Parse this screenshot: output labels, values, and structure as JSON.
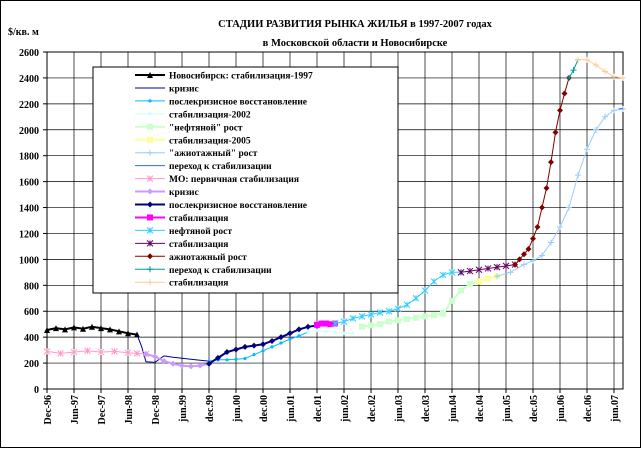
{
  "chart_data": {
    "type": "line",
    "title_line1": "СТАДИИ РАЗВИТИЯ РЫНКА ЖИЛЬЯ в 1997-2007 годах",
    "title_line2": "в Московской области и Новосибирске",
    "ylabel": "$/кв. м",
    "ylim": [
      0,
      2600
    ],
    "yticks": [
      "0",
      "200",
      "400",
      "600",
      "800",
      "1000",
      "1200",
      "1400",
      "1600",
      "1800",
      "2000",
      "2200",
      "2400",
      "2600"
    ],
    "xlim": [
      0,
      128
    ],
    "xticks": [
      {
        "i": 0,
        "label": "Dec-96"
      },
      {
        "i": 6,
        "label": "Jun-97"
      },
      {
        "i": 12,
        "label": "Dec-97"
      },
      {
        "i": 18,
        "label": "Jun-98"
      },
      {
        "i": 24,
        "label": "Dec-98"
      },
      {
        "i": 30,
        "label": "jun.99"
      },
      {
        "i": 36,
        "label": "dec.99"
      },
      {
        "i": 42,
        "label": "jun.00"
      },
      {
        "i": 48,
        "label": "dec.00"
      },
      {
        "i": 54,
        "label": "jun.01"
      },
      {
        "i": 60,
        "label": "dec.01"
      },
      {
        "i": 66,
        "label": "jun.02"
      },
      {
        "i": 72,
        "label": "dec.02"
      },
      {
        "i": 78,
        "label": "jun.03"
      },
      {
        "i": 84,
        "label": "dec.03"
      },
      {
        "i": 90,
        "label": "jun.04"
      },
      {
        "i": 96,
        "label": "dec.04"
      },
      {
        "i": 102,
        "label": "jun.05"
      },
      {
        "i": 108,
        "label": "dec.05"
      },
      {
        "i": 114,
        "label": "jun.06"
      },
      {
        "i": 120,
        "label": "dec.06"
      },
      {
        "i": 126,
        "label": "jun.07"
      }
    ],
    "grid": true,
    "legend_placement": "upper-left inside plot",
    "series": [
      {
        "name": "Новосибирск: стабилизация-1997",
        "color": "#000000",
        "marker": "triangle",
        "width": 2,
        "points": [
          [
            0,
            455
          ],
          [
            2,
            470
          ],
          [
            4,
            460
          ],
          [
            6,
            475
          ],
          [
            8,
            465
          ],
          [
            10,
            480
          ],
          [
            12,
            470
          ],
          [
            14,
            460
          ],
          [
            16,
            445
          ],
          [
            18,
            430
          ],
          [
            20,
            420
          ]
        ]
      },
      {
        "name": "кризис",
        "color": "#000099",
        "marker": "none",
        "width": 1,
        "points": [
          [
            20,
            420
          ],
          [
            21,
            330
          ],
          [
            22,
            210
          ],
          [
            24,
            205
          ],
          [
            26,
            255
          ],
          [
            28,
            245
          ],
          [
            30,
            238
          ],
          [
            32,
            230
          ],
          [
            34,
            222
          ],
          [
            36,
            215
          ]
        ]
      },
      {
        "name": "послекризисное восстановление",
        "color": "#00BBFF",
        "marker": "dot",
        "width": 1,
        "points": [
          [
            36,
            215
          ],
          [
            38,
            225
          ],
          [
            40,
            225
          ],
          [
            42,
            230
          ],
          [
            44,
            235
          ],
          [
            46,
            265
          ],
          [
            48,
            295
          ],
          [
            50,
            325
          ],
          [
            52,
            355
          ],
          [
            54,
            385
          ],
          [
            56,
            410
          ],
          [
            58,
            440
          ]
        ]
      },
      {
        "name": "стабилизация-2002",
        "color": "#CCFFFF",
        "marker": "dot",
        "width": 1,
        "points": [
          [
            58,
            440
          ],
          [
            60,
            450
          ],
          [
            62,
            445
          ],
          [
            64,
            440
          ],
          [
            66,
            430
          ],
          [
            68,
            430
          ]
        ]
      },
      {
        "name": "\"нефтяной\" рост",
        "color": "#CCFFCC",
        "marker": "square",
        "width": 2,
        "points": [
          [
            70,
            480
          ],
          [
            72,
            490
          ],
          [
            74,
            500
          ],
          [
            76,
            520
          ],
          [
            78,
            530
          ],
          [
            80,
            540
          ],
          [
            82,
            550
          ],
          [
            84,
            560
          ],
          [
            86,
            570
          ],
          [
            88,
            580
          ],
          [
            90,
            680
          ],
          [
            92,
            760
          ],
          [
            94,
            810
          ],
          [
            96,
            830
          ]
        ]
      },
      {
        "name": "стабилизация-2005",
        "color": "#FFFF99",
        "marker": "square",
        "width": 2,
        "points": [
          [
            96,
            830
          ],
          [
            98,
            850
          ],
          [
            100,
            870
          ]
        ]
      },
      {
        "name": "\"ажиотажный\" рост",
        "color": "#99CCFF",
        "marker": "plus",
        "width": 1,
        "points": [
          [
            100,
            870
          ],
          [
            103,
            900
          ],
          [
            106,
            960
          ],
          [
            108,
            990
          ],
          [
            110,
            1030
          ],
          [
            112,
            1130
          ],
          [
            114,
            1250
          ],
          [
            116,
            1400
          ],
          [
            118,
            1650
          ],
          [
            120,
            1850
          ],
          [
            122,
            2000
          ],
          [
            124,
            2100
          ],
          [
            126,
            2150
          ],
          [
            128,
            2160
          ]
        ]
      },
      {
        "name": "переход к стабилизации",
        "color": "#3366FF",
        "marker": "none",
        "width": 1,
        "points": [
          [
            127,
            2160
          ],
          [
            128,
            2165
          ]
        ]
      },
      {
        "name": "МО: первичная стабилизация",
        "color": "#FF99CC",
        "marker": "star",
        "width": 1,
        "points": [
          [
            0,
            290
          ],
          [
            3,
            275
          ],
          [
            6,
            285
          ],
          [
            9,
            295
          ],
          [
            12,
            285
          ],
          [
            15,
            290
          ],
          [
            18,
            280
          ],
          [
            20,
            275
          ],
          [
            22,
            270
          ]
        ]
      },
      {
        "name": "кризис",
        "color": "#CC99FF",
        "marker": "diamond",
        "width": 2,
        "points": [
          [
            22,
            270
          ],
          [
            24,
            250
          ],
          [
            26,
            215
          ],
          [
            28,
            195
          ],
          [
            30,
            180
          ],
          [
            32,
            175
          ],
          [
            34,
            180
          ],
          [
            36,
            195
          ]
        ]
      },
      {
        "name": "послекризисное восстановление",
        "color": "#000080",
        "marker": "diamond",
        "width": 2,
        "points": [
          [
            36,
            195
          ],
          [
            38,
            240
          ],
          [
            40,
            285
          ],
          [
            42,
            305
          ],
          [
            44,
            325
          ],
          [
            46,
            335
          ],
          [
            48,
            345
          ],
          [
            50,
            370
          ],
          [
            52,
            400
          ],
          [
            54,
            430
          ],
          [
            56,
            460
          ],
          [
            58,
            480
          ],
          [
            60,
            490
          ]
        ]
      },
      {
        "name": "стабилизация",
        "color": "#FF00FF",
        "marker": "square",
        "width": 3,
        "points": [
          [
            60,
            495
          ],
          [
            61,
            505
          ],
          [
            62,
            505
          ],
          [
            63,
            500
          ],
          [
            64,
            505
          ]
        ]
      },
      {
        "name": "нефтяной рост",
        "color": "#33CCFF",
        "marker": "star",
        "width": 1,
        "points": [
          [
            64,
            505
          ],
          [
            66,
            520
          ],
          [
            68,
            545
          ],
          [
            70,
            560
          ],
          [
            72,
            575
          ],
          [
            74,
            590
          ],
          [
            76,
            600
          ],
          [
            78,
            620
          ],
          [
            80,
            650
          ],
          [
            82,
            700
          ],
          [
            84,
            760
          ],
          [
            86,
            830
          ],
          [
            88,
            880
          ],
          [
            90,
            900
          ],
          [
            92,
            900
          ]
        ]
      },
      {
        "name": "стабилизация",
        "color": "#660066",
        "marker": "star",
        "width": 1,
        "points": [
          [
            92,
            900
          ],
          [
            94,
            910
          ],
          [
            96,
            920
          ],
          [
            98,
            930
          ],
          [
            100,
            940
          ],
          [
            102,
            950
          ],
          [
            104,
            960
          ]
        ]
      },
      {
        "name": "ажиотажный рост",
        "color": "#800000",
        "marker": "diamond",
        "width": 1,
        "points": [
          [
            104,
            960
          ],
          [
            105,
            1000
          ],
          [
            106,
            1040
          ],
          [
            107,
            1080
          ],
          [
            108,
            1160
          ],
          [
            109,
            1250
          ],
          [
            110,
            1400
          ],
          [
            111,
            1550
          ],
          [
            112,
            1750
          ],
          [
            113,
            1980
          ],
          [
            114,
            2150
          ],
          [
            115,
            2280
          ],
          [
            116,
            2400
          ]
        ]
      },
      {
        "name": "переход к стабилизации",
        "color": "#009999",
        "marker": "plus",
        "width": 1,
        "points": [
          [
            116,
            2400
          ],
          [
            117,
            2460
          ],
          [
            118,
            2540
          ]
        ]
      },
      {
        "name": "стабилизация",
        "color": "#FFCC99",
        "marker": "plus",
        "width": 1,
        "points": [
          [
            118,
            2540
          ],
          [
            120,
            2540
          ],
          [
            122,
            2500
          ],
          [
            124,
            2450
          ],
          [
            126,
            2410
          ],
          [
            128,
            2400
          ]
        ]
      }
    ]
  }
}
